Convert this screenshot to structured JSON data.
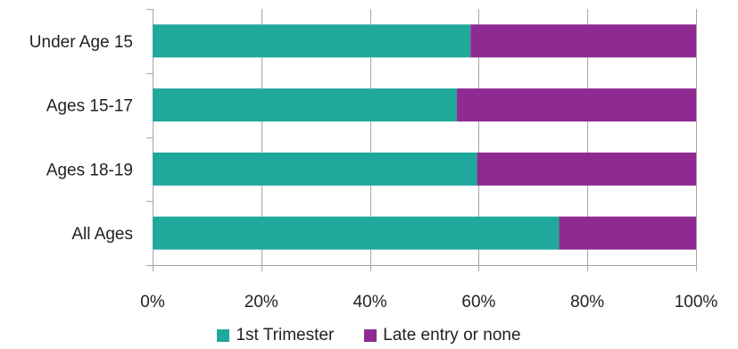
{
  "chart_data": {
    "type": "bar",
    "orientation": "horizontal",
    "stacked": "percent",
    "categories": [
      "Under Age 15",
      "Ages 15-17",
      "Ages 18-19",
      "All Ages"
    ],
    "series": [
      {
        "name": "1st Trimester",
        "values": [
          58.5,
          56,
          59.7,
          74.8
        ],
        "color": "#20a89c"
      },
      {
        "name": "Late entry or none",
        "values": [
          41.5,
          44,
          40.3,
          25.2
        ],
        "color": "#8e2a91"
      }
    ],
    "xticks": [
      "0%",
      "20%",
      "40%",
      "60%",
      "80%",
      "100%"
    ],
    "xlim": [
      0,
      100
    ],
    "grid": true,
    "legend_position": "bottom"
  }
}
